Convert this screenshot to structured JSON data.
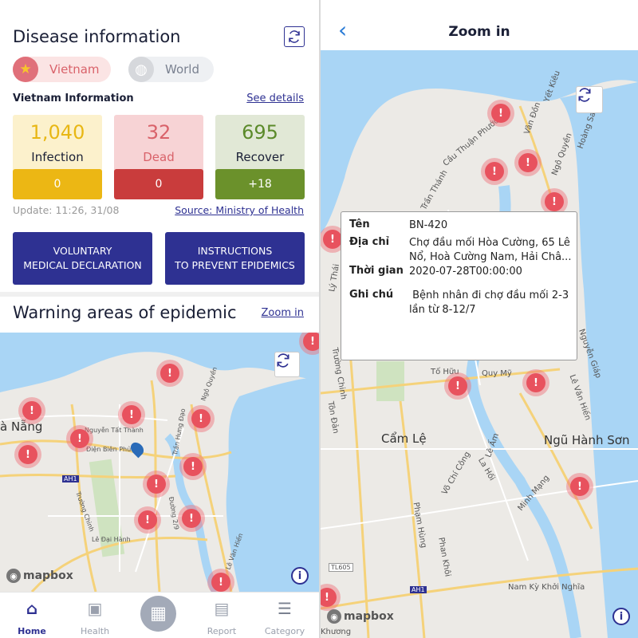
{
  "left": {
    "title": "Disease information",
    "refresh_icon": "refresh-icon",
    "toggle": {
      "vietnam": {
        "label": "Vietnam",
        "icon": "star-icon",
        "active": true
      },
      "world": {
        "label": "World",
        "icon": "globe-icon",
        "active": false
      }
    },
    "section_title": "Vietnam Information",
    "see_details": "See details",
    "stats": [
      {
        "value": "1,040",
        "label": "Infection",
        "delta": "0",
        "color": "#e8b714",
        "bg": "#fcf1cc",
        "delta_bg": "#ecb714"
      },
      {
        "value": "32",
        "label": "Dead",
        "delta": "0",
        "color": "#d9626a",
        "bg": "#f7d3d5",
        "delta_bg": "#c93c3c"
      },
      {
        "value": "695",
        "label": "Recover",
        "delta": "+18",
        "color": "#5b8a2a",
        "bg": "#e1e8d6",
        "delta_bg": "#6b912b"
      }
    ],
    "update": "Update: 11:26, 31/08",
    "source": "Source: Ministry of Health",
    "buttons": [
      {
        "line1": "VOLUNTARY",
        "line2": "MEDICAL DECLARATION"
      },
      {
        "line1": "INSTRUCTIONS",
        "line2": "TO PREVENT EPIDEMICS"
      }
    ],
    "warning_title": "Warning areas of epidemic",
    "zoom_in": "Zoom in",
    "map": {
      "labels": [
        "à Nẵng",
        "Nguyễn Tất Thành",
        "Điện Biên Phủ",
        "AH1",
        "Trường Chinh",
        "Lê Đại Hành",
        "Ngô Quyền",
        "Trần Hưng Đạo",
        "Lê Văn Hiến",
        "Đường 2/9"
      ],
      "attribution": "mapbox"
    },
    "tabs": [
      {
        "label": "Home",
        "icon": "home-icon",
        "active": true
      },
      {
        "label": "Health",
        "icon": "health-monitor-icon"
      },
      {
        "label": "",
        "icon": "qr-code-icon"
      },
      {
        "label": "Report",
        "icon": "report-icon"
      },
      {
        "label": "Category",
        "icon": "menu-icon"
      }
    ]
  },
  "right": {
    "back_icon": "chevron-left-icon",
    "title": "Zoom in",
    "map": {
      "labels": [
        "Yết Kiêu",
        "Cầu Thuận Phước",
        "Vân Đồn",
        "Ngô Quyền",
        "Hoàng Sa",
        "Trần Thánh",
        "Lý Thái",
        "Trường Chinh",
        "Tôn Đản",
        "Tố Hữu",
        "Quy Mỹ",
        "Nguyễn Giáp",
        "Lê Văn Hiến",
        "Cẩm Lệ",
        "Ngũ Hành Sơn",
        "Lê Ấm",
        "La Hối",
        "Võ Chí Công",
        "Minh Mạng",
        "Phạm Hùng",
        "Phan Khôi",
        "TL605",
        "AH1",
        "Nam Kỳ Khởi Nghĩa",
        "Khương"
      ],
      "attribution": "mapbox"
    },
    "popup": {
      "rows": [
        {
          "key": "Tên",
          "value": "BN-420"
        },
        {
          "key": "Địa chỉ",
          "value": "Chợ đầu mối Hòa Cường, 65 Lê Nổ, Hoà Cường Nam, Hải Châ..."
        },
        {
          "key": "Thời gian",
          "value": "2020-07-28T00:00:00"
        },
        {
          "key": "Ghi chú",
          "value": " Bệnh nhân đi chợ đầu mối 2-3 lần từ 8-12/7"
        }
      ]
    }
  },
  "colors": {
    "primary": "#2e3192",
    "marker": "#e8525e",
    "water": "#a9d5f5",
    "road": "#f5d27a"
  }
}
